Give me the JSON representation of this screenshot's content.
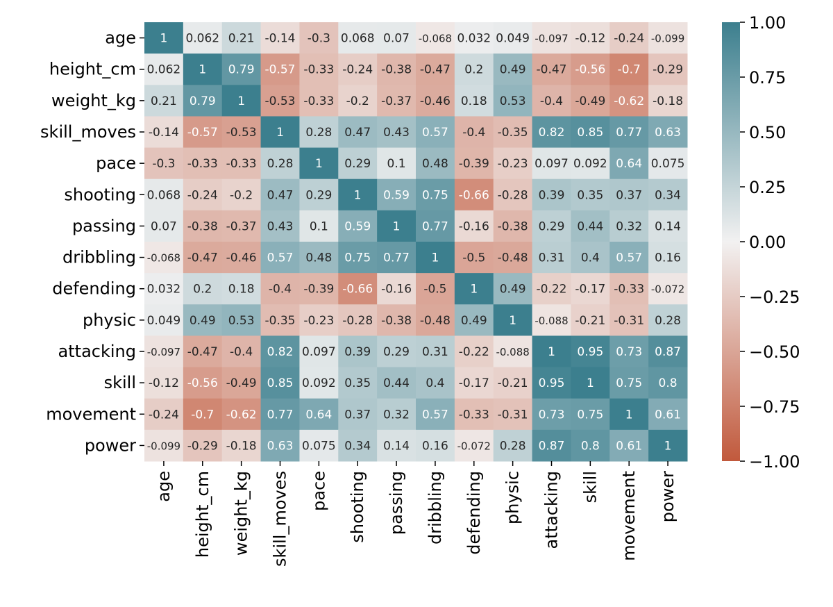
{
  "chart_data": {
    "type": "heatmap",
    "title": "",
    "xlabel": "",
    "ylabel": "",
    "variables": [
      "age",
      "height_cm",
      "weight_kg",
      "skill_moves",
      "pace",
      "shooting",
      "passing",
      "dribbling",
      "defending",
      "physic",
      "attacking",
      "skill",
      "movement",
      "power"
    ],
    "matrix": [
      [
        1,
        0.062,
        0.21,
        -0.14,
        -0.3,
        0.068,
        0.07,
        -0.068,
        0.032,
        0.049,
        -0.097,
        -0.12,
        -0.24,
        -0.099
      ],
      [
        0.062,
        1,
        0.79,
        -0.57,
        -0.33,
        -0.24,
        -0.38,
        -0.47,
        0.2,
        0.49,
        -0.47,
        -0.56,
        -0.7,
        -0.29
      ],
      [
        0.21,
        0.79,
        1,
        -0.53,
        -0.33,
        -0.2,
        -0.37,
        -0.46,
        0.18,
        0.53,
        -0.4,
        -0.49,
        -0.62,
        -0.18
      ],
      [
        -0.14,
        -0.57,
        -0.53,
        1,
        0.28,
        0.47,
        0.43,
        0.57,
        -0.4,
        -0.35,
        0.82,
        0.85,
        0.77,
        0.63
      ],
      [
        -0.3,
        -0.33,
        -0.33,
        0.28,
        1,
        0.29,
        0.1,
        0.48,
        -0.39,
        -0.23,
        0.097,
        0.092,
        0.64,
        0.075
      ],
      [
        0.068,
        -0.24,
        -0.2,
        0.47,
        0.29,
        1,
        0.59,
        0.75,
        -0.66,
        -0.28,
        0.39,
        0.35,
        0.37,
        0.34
      ],
      [
        0.07,
        -0.38,
        -0.37,
        0.43,
        0.1,
        0.59,
        1,
        0.77,
        -0.16,
        -0.38,
        0.29,
        0.44,
        0.32,
        0.14
      ],
      [
        -0.068,
        -0.47,
        -0.46,
        0.57,
        0.48,
        0.75,
        0.77,
        1,
        -0.5,
        -0.48,
        0.31,
        0.4,
        0.57,
        0.16
      ],
      [
        0.032,
        0.2,
        0.18,
        -0.4,
        -0.39,
        -0.66,
        -0.16,
        -0.5,
        1,
        0.49,
        -0.22,
        -0.17,
        -0.33,
        -0.072
      ],
      [
        0.049,
        0.49,
        0.53,
        -0.35,
        -0.23,
        -0.28,
        -0.38,
        -0.48,
        0.49,
        1,
        -0.088,
        -0.21,
        -0.31,
        0.28
      ],
      [
        -0.097,
        -0.47,
        -0.4,
        0.82,
        0.097,
        0.39,
        0.29,
        0.31,
        -0.22,
        -0.088,
        1,
        0.95,
        0.73,
        0.87
      ],
      [
        -0.12,
        -0.56,
        -0.49,
        0.85,
        0.092,
        0.35,
        0.44,
        0.4,
        -0.17,
        -0.21,
        0.95,
        1,
        0.75,
        0.8
      ],
      [
        -0.24,
        -0.7,
        -0.62,
        0.77,
        0.64,
        0.37,
        0.32,
        0.57,
        -0.33,
        -0.31,
        0.73,
        0.75,
        1,
        0.61
      ],
      [
        -0.099,
        -0.29,
        -0.18,
        0.63,
        0.075,
        0.34,
        0.14,
        0.16,
        -0.072,
        0.28,
        0.87,
        0.8,
        0.61,
        1
      ]
    ],
    "colorbar": {
      "range": [
        -1.0,
        1.0
      ],
      "ticks": [
        1.0,
        0.75,
        0.5,
        0.25,
        0.0,
        -0.25,
        -0.5,
        -0.75,
        -1.0
      ],
      "tick_labels": [
        "1.00",
        "0.75",
        "0.50",
        "0.25",
        "0.00",
        "−0.25",
        "−0.50",
        "−0.75",
        "−1.00"
      ],
      "colors": {
        "negative": "#c1593c",
        "center": "#f2f1f1",
        "positive": "#3c7f8e"
      }
    },
    "grid": false,
    "legend": "colorbar-right",
    "annotate_cells": true
  }
}
